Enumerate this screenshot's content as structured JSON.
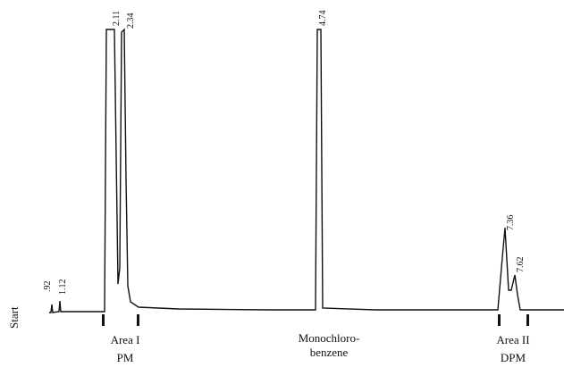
{
  "start_label": "Start",
  "peaks": [
    ".92",
    "1.12",
    "2.11",
    "2.34",
    "4.74",
    "7.36",
    "7.62"
  ],
  "regions": [
    {
      "label": "Area I",
      "sublabel": "PM"
    },
    {
      "label": "Monochloro-",
      "sublabel": "benzene"
    },
    {
      "label": "Area II",
      "sublabel": "DPM"
    }
  ]
}
